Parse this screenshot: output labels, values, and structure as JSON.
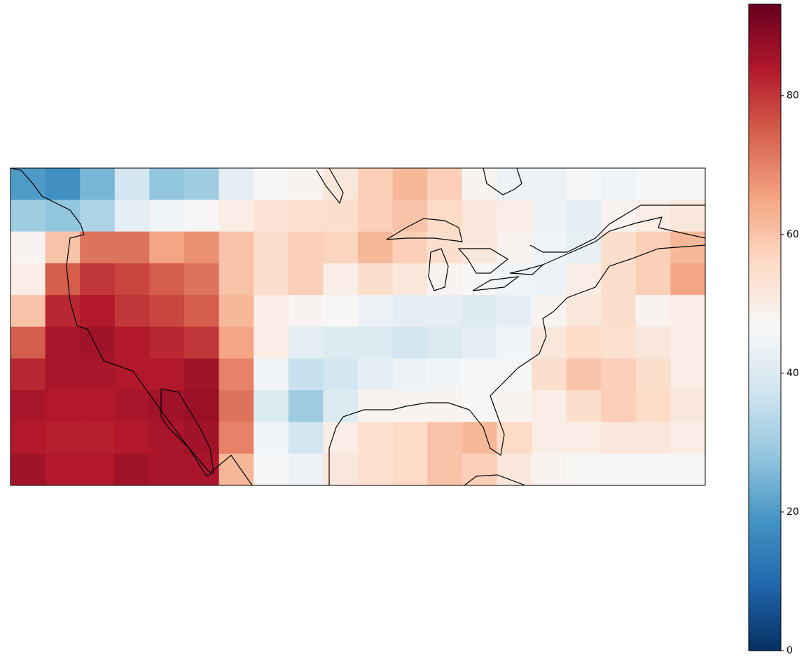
{
  "chart_data": {
    "type": "heatmap",
    "colormap": "RdBu_r",
    "clim": [
      0,
      93.2
    ],
    "cticks": [
      0,
      20,
      40,
      60,
      80
    ],
    "values": [
      [
        20,
        18,
        25,
        38,
        28,
        30,
        42,
        46,
        48,
        52,
        58,
        62,
        58,
        48,
        44,
        44,
        46,
        45,
        46,
        47
      ],
      [
        30,
        28,
        32,
        42,
        45,
        47,
        50,
        53,
        54,
        55,
        58,
        60,
        56,
        52,
        50,
        44,
        42,
        48,
        50,
        52
      ],
      [
        48,
        60,
        72,
        72,
        65,
        68,
        60,
        55,
        58,
        57,
        62,
        58,
        55,
        52,
        48,
        45,
        43,
        55,
        58,
        62
      ],
      [
        50,
        75,
        80,
        78,
        75,
        72,
        60,
        55,
        58,
        50,
        55,
        52,
        48,
        47,
        45,
        44,
        50,
        55,
        58,
        65
      ],
      [
        60,
        82,
        84,
        80,
        78,
        75,
        62,
        50,
        48,
        47,
        44,
        42,
        42,
        40,
        42,
        48,
        52,
        55,
        48,
        50
      ],
      [
        75,
        85,
        86,
        84,
        82,
        80,
        65,
        50,
        42,
        40,
        40,
        38,
        40,
        42,
        45,
        52,
        56,
        54,
        52,
        50
      ],
      [
        82,
        85,
        85,
        84,
        84,
        86,
        70,
        45,
        36,
        38,
        42,
        44,
        45,
        46,
        46,
        55,
        60,
        58,
        55,
        50
      ],
      [
        85,
        84,
        84,
        85,
        86,
        87,
        72,
        40,
        30,
        40,
        48,
        48,
        48,
        47,
        48,
        50,
        55,
        58,
        56,
        52
      ],
      [
        84,
        83,
        83,
        84,
        85,
        86,
        70,
        45,
        38,
        50,
        54,
        56,
        60,
        62,
        56,
        50,
        50,
        52,
        52,
        50
      ],
      [
        86,
        84,
        84,
        86,
        85,
        85,
        62,
        46,
        44,
        52,
        54,
        56,
        60,
        58,
        52,
        48,
        47,
        46,
        46,
        47
      ]
    ]
  }
}
